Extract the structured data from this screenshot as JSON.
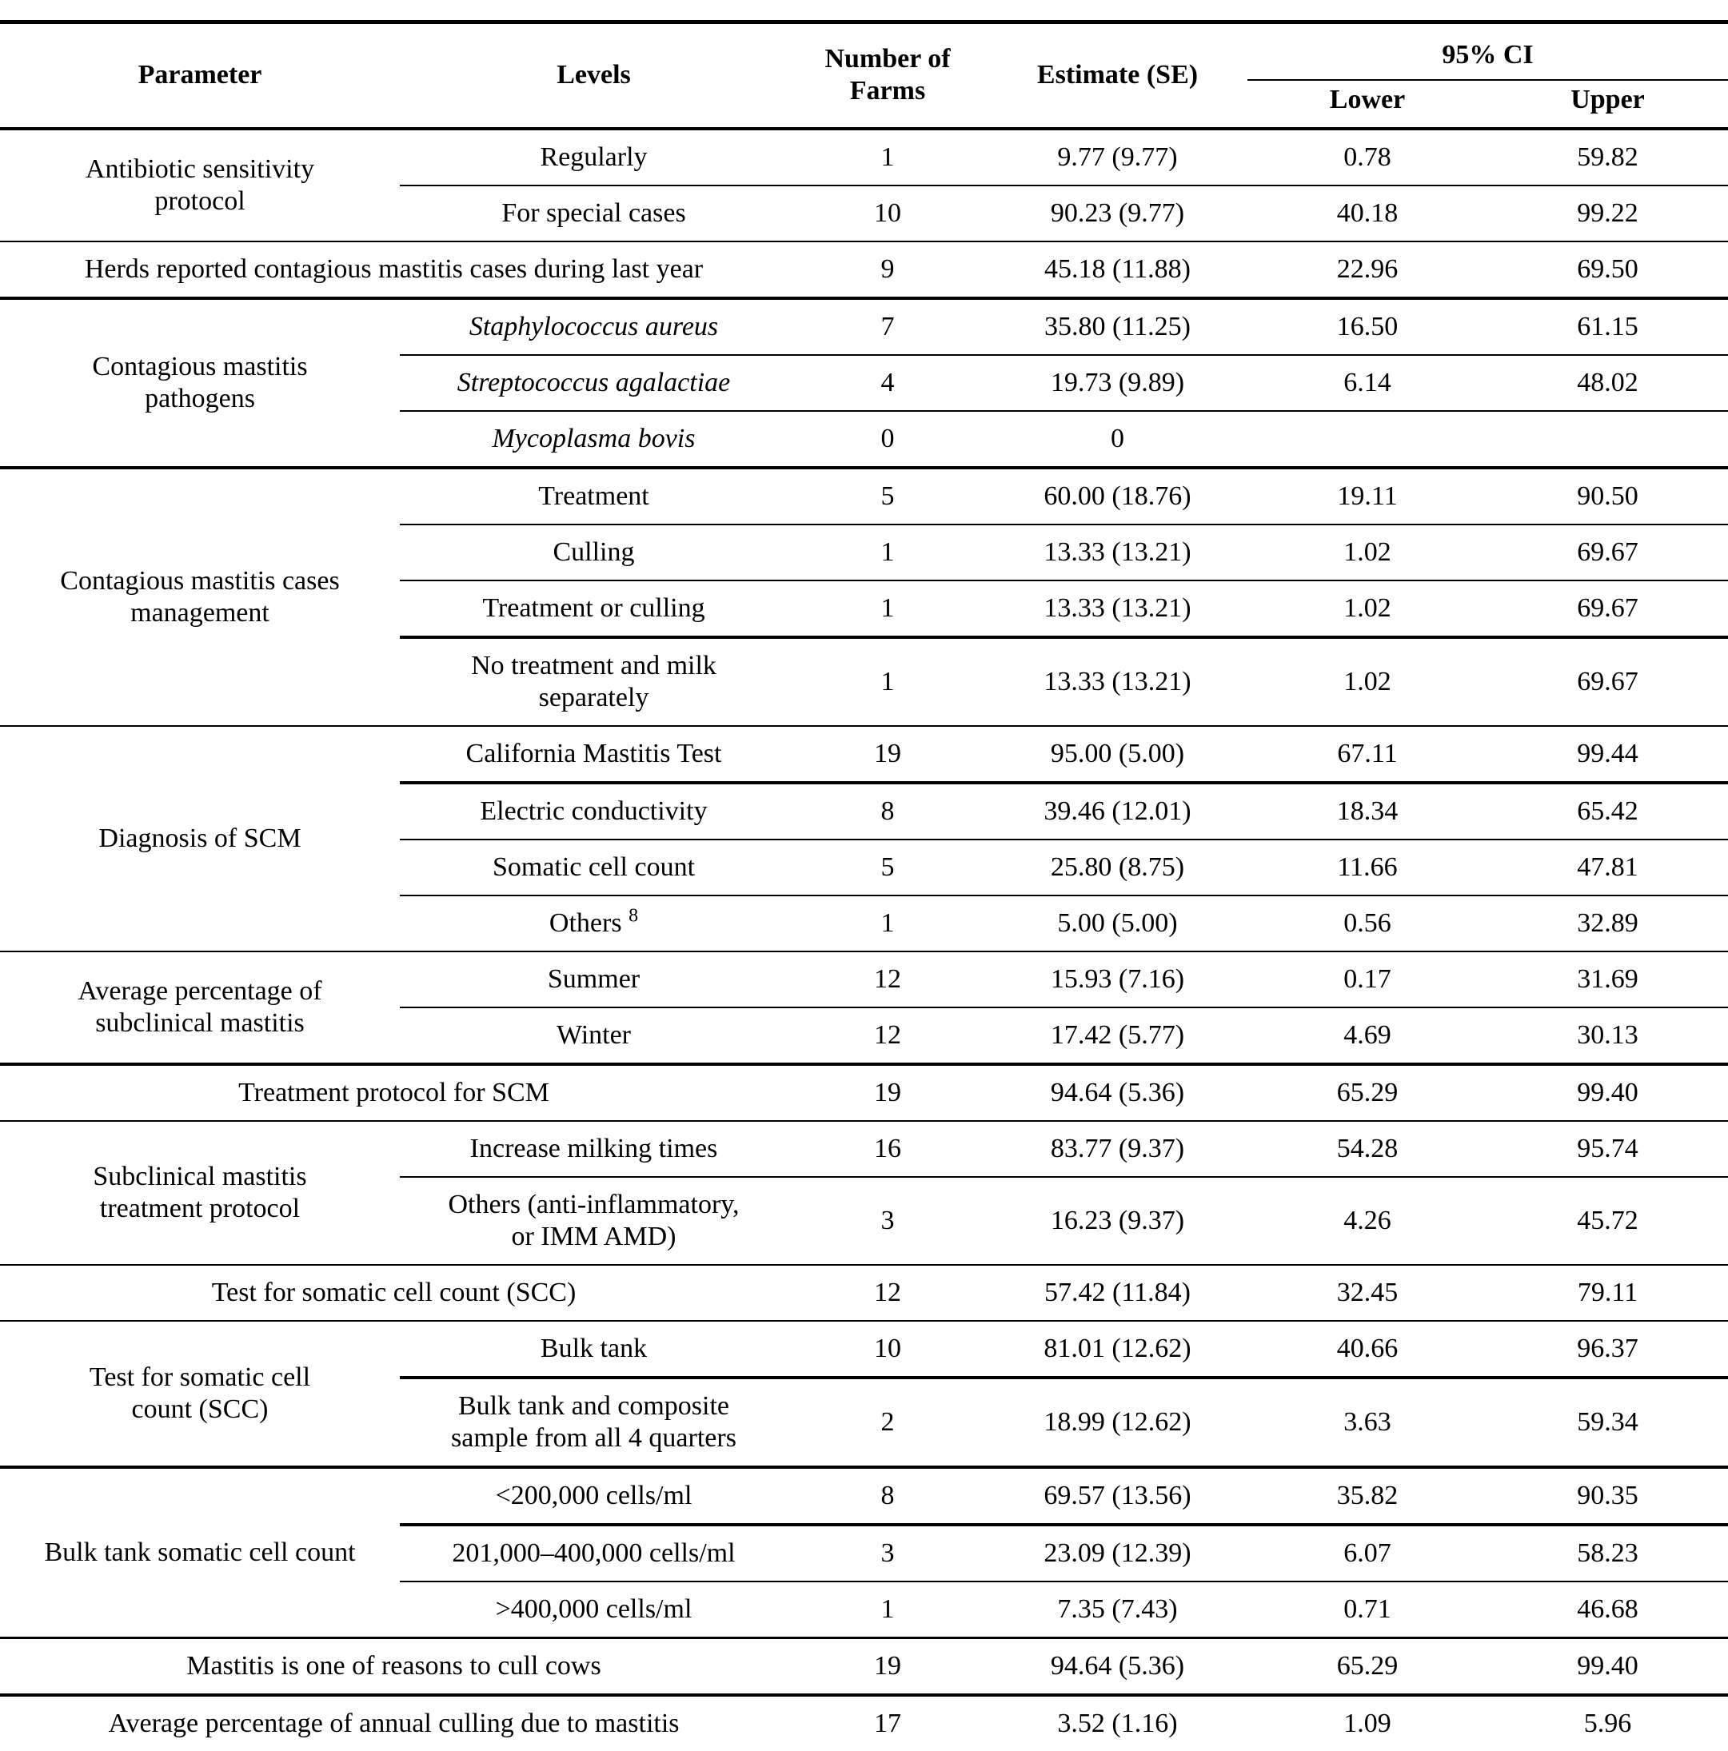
{
  "table": {
    "header": {
      "parameter": "Parameter",
      "levels": "Levels",
      "farms": "Number of\nFarms",
      "estimate": "Estimate (SE)",
      "ci": "95% CI",
      "lower": "Lower",
      "upper": "Upper"
    },
    "blocks": [
      {
        "type": "group",
        "parameter": "Antibiotic sensitivity\nprotocol",
        "levels": [
          {
            "label": "Regularly",
            "farms": "1",
            "estimate": "9.77 (9.77)",
            "lower": "0.78",
            "upper": "59.82"
          },
          {
            "label": "For special cases",
            "farms": "10",
            "estimate": "90.23 (9.77)",
            "lower": "40.18",
            "upper": "99.22"
          }
        ]
      },
      {
        "type": "span",
        "label": "Herds reported contagious mastitis cases during last year",
        "farms": "9",
        "estimate": "45.18 (11.88)",
        "lower": "22.96",
        "upper": "69.50"
      },
      {
        "type": "group",
        "parameter": "Contagious mastitis\npathogens",
        "levels": [
          {
            "label": "Staphylococcus aureus",
            "italic": true,
            "farms": "7",
            "estimate": "35.80 (11.25)",
            "lower": "16.50",
            "upper": "61.15"
          },
          {
            "label": "Streptococcus agalactiae",
            "italic": true,
            "farms": "4",
            "estimate": "19.73 (9.89)",
            "lower": "6.14",
            "upper": "48.02"
          },
          {
            "label": "Mycoplasma bovis",
            "italic": true,
            "farms": "0",
            "estimate": "0",
            "lower": "",
            "upper": ""
          }
        ]
      },
      {
        "type": "group",
        "parameter": "Contagious mastitis cases\nmanagement",
        "levels": [
          {
            "label": "Treatment",
            "farms": "5",
            "estimate": "60.00 (18.76)",
            "lower": "19.11",
            "upper": "90.50"
          },
          {
            "label": "Culling",
            "farms": "1",
            "estimate": "13.33 (13.21)",
            "lower": "1.02",
            "upper": "69.67"
          },
          {
            "label": "Treatment or culling",
            "farms": "1",
            "estimate": "13.33 (13.21)",
            "lower": "1.02",
            "upper": "69.67"
          },
          {
            "label": "No treatment and milk\nseparately",
            "farms": "1",
            "estimate": "13.33 (13.21)",
            "lower": "1.02",
            "upper": "69.67"
          }
        ]
      },
      {
        "type": "group",
        "parameter": "Diagnosis of SCM",
        "levels": [
          {
            "label": "California Mastitis Test",
            "farms": "19",
            "estimate": "95.00 (5.00)",
            "lower": "67.11",
            "upper": "99.44"
          },
          {
            "label": "Electric conductivity",
            "farms": "8",
            "estimate": "39.46 (12.01)",
            "lower": "18.34",
            "upper": "65.42"
          },
          {
            "label": "Somatic cell count",
            "farms": "5",
            "estimate": "25.80 (8.75)",
            "lower": "11.66",
            "upper": "47.81"
          },
          {
            "label": "Others",
            "sup": "8",
            "farms": "1",
            "estimate": "5.00 (5.00)",
            "lower": "0.56",
            "upper": "32.89"
          }
        ]
      },
      {
        "type": "group",
        "parameter": "Average percentage of\nsubclinical mastitis",
        "levels": [
          {
            "label": "Summer",
            "farms": "12",
            "estimate": "15.93 (7.16)",
            "lower": "0.17",
            "upper": "31.69"
          },
          {
            "label": "Winter",
            "farms": "12",
            "estimate": "17.42 (5.77)",
            "lower": "4.69",
            "upper": "30.13"
          }
        ]
      },
      {
        "type": "span",
        "label": "Treatment protocol for SCM",
        "farms": "19",
        "estimate": "94.64 (5.36)",
        "lower": "65.29",
        "upper": "99.40"
      },
      {
        "type": "group",
        "parameter": "Subclinical mastitis\ntreatment protocol",
        "levels": [
          {
            "label": "Increase milking times",
            "farms": "16",
            "estimate": "83.77 (9.37)",
            "lower": "54.28",
            "upper": "95.74"
          },
          {
            "label": "Others (anti-inflammatory,\nor IMM AMD)",
            "farms": "3",
            "estimate": "16.23 (9.37)",
            "lower": "4.26",
            "upper": "45.72"
          }
        ]
      },
      {
        "type": "span",
        "label": "Test for somatic cell count (SCC)",
        "farms": "12",
        "estimate": "57.42 (11.84)",
        "lower": "32.45",
        "upper": "79.11"
      },
      {
        "type": "group",
        "parameter": "Test for somatic cell\ncount (SCC)",
        "levels": [
          {
            "label": "Bulk tank",
            "farms": "10",
            "estimate": "81.01 (12.62)",
            "lower": "40.66",
            "upper": "96.37"
          },
          {
            "label": "Bulk tank and composite\nsample from all 4 quarters",
            "farms": "2",
            "estimate": "18.99 (12.62)",
            "lower": "3.63",
            "upper": "59.34"
          }
        ]
      },
      {
        "type": "group",
        "parameter": "Bulk tank somatic cell count",
        "levels": [
          {
            "label": "<200,000 cells/ml",
            "farms": "8",
            "estimate": "69.57 (13.56)",
            "lower": "35.82",
            "upper": "90.35"
          },
          {
            "label": "201,000–400,000 cells/ml",
            "farms": "3",
            "estimate": "23.09 (12.39)",
            "lower": "6.07",
            "upper": "58.23"
          },
          {
            "label": ">400,000 cells/ml",
            "farms": "1",
            "estimate": "7.35 (7.43)",
            "lower": "0.71",
            "upper": "46.68"
          }
        ]
      },
      {
        "type": "span",
        "label": "Mastitis is one of reasons to cull cows",
        "farms": "19",
        "estimate": "94.64 (5.36)",
        "lower": "65.29",
        "upper": "99.40"
      },
      {
        "type": "span",
        "label": "Average percentage of annual culling due to mastitis",
        "farms": "17",
        "estimate": "3.52 (1.16)",
        "lower": "1.09",
        "upper": "5.96"
      }
    ]
  }
}
